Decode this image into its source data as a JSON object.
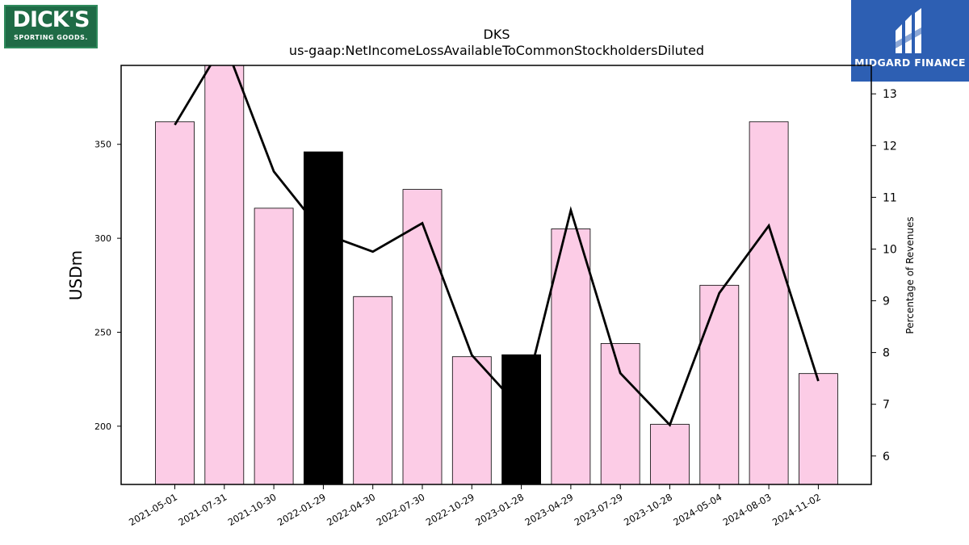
{
  "logos": {
    "left": {
      "line1": "DICK'S",
      "line2": "SPORTING GOODS."
    },
    "right": {
      "text": "MIDGARD FINANCE"
    }
  },
  "chart_data": {
    "type": "bar",
    "title": "DKS",
    "subtitle": "us-gaap:NetIncomeLossAvailableToCommonStockholdersDiluted",
    "ylabel": "USDm",
    "y2label": "Percentage of Revenues",
    "ylim": [
      169,
      392
    ],
    "y2lim": [
      5.45,
      13.55
    ],
    "yticks": [
      200,
      250,
      300,
      350
    ],
    "y2ticks": [
      6,
      7,
      8,
      9,
      10,
      11,
      12,
      13
    ],
    "categories": [
      "2021-05-01",
      "2021-07-31",
      "2021-10-30",
      "2022-01-29",
      "2022-04-30",
      "2022-07-30",
      "2022-10-29",
      "2023-01-28",
      "2023-04-29",
      "2023-07-29",
      "2023-10-28",
      "2024-05-04",
      "2024-08-03",
      "2024-11-02"
    ],
    "series": [
      {
        "values": [
          362,
          395,
          316,
          346,
          269,
          326,
          237,
          238,
          305,
          244,
          201,
          275,
          362,
          228
        ],
        "bar_colors": [
          "#fccce6",
          "#fccce6",
          "#fccce6",
          "#000000",
          "#fccce6",
          "#fccce6",
          "#fccce6",
          "#000000",
          "#fccce6",
          "#fccce6",
          "#fccce6",
          "#fccce6",
          "#fccce6",
          "#fccce6"
        ]
      },
      {
        "axis": "right",
        "values": [
          12.4,
          14.0,
          11.5,
          10.3,
          9.95,
          10.5,
          7.95,
          6.9,
          10.75,
          7.6,
          6.6,
          9.15,
          10.45,
          7.45
        ],
        "color": "#000000"
      }
    ],
    "grid": false
  }
}
